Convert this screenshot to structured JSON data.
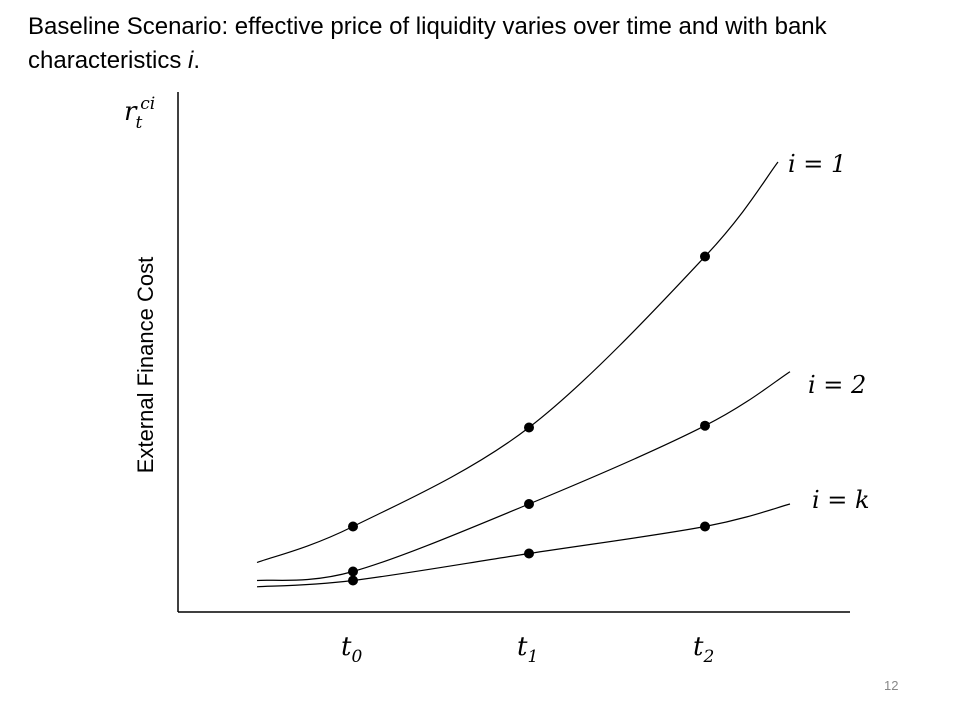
{
  "slide": {
    "title_prefix": "Baseline Scenario:  effective price of liquidity varies over time and with bank characteristics ",
    "title_italic": "i",
    "title_suffix": ".",
    "page_number": "12"
  },
  "chart_data": {
    "type": "line",
    "title": "",
    "xlabel": "",
    "ylabel": "External Finance Cost",
    "y_axis_symbol": {
      "base": "r",
      "subscript": "t",
      "superscript": "ci"
    },
    "x_ticks": [
      {
        "base": "t",
        "sub": "0"
      },
      {
        "base": "t",
        "sub": "1"
      },
      {
        "base": "t",
        "sub": "2"
      }
    ],
    "x": [
      0,
      1,
      2
    ],
    "grid": false,
    "legend": "labels at curve ends",
    "series": [
      {
        "name": "𝑖 = 1",
        "values": [
          0.95,
          2.05,
          3.95
        ],
        "left_start": 0.55,
        "right_end": 5.0
      },
      {
        "name": "𝑖 = 2",
        "values": [
          0.45,
          1.2,
          2.07
        ],
        "left_start": 0.35,
        "right_end": 2.67
      },
      {
        "name": "𝑖 = 𝑘",
        "values": [
          0.35,
          0.65,
          0.95
        ],
        "left_start": 0.28,
        "right_end": 1.2
      }
    ],
    "colors": {
      "line": "#000000",
      "marker": "#000000",
      "axis": "#000000"
    }
  }
}
